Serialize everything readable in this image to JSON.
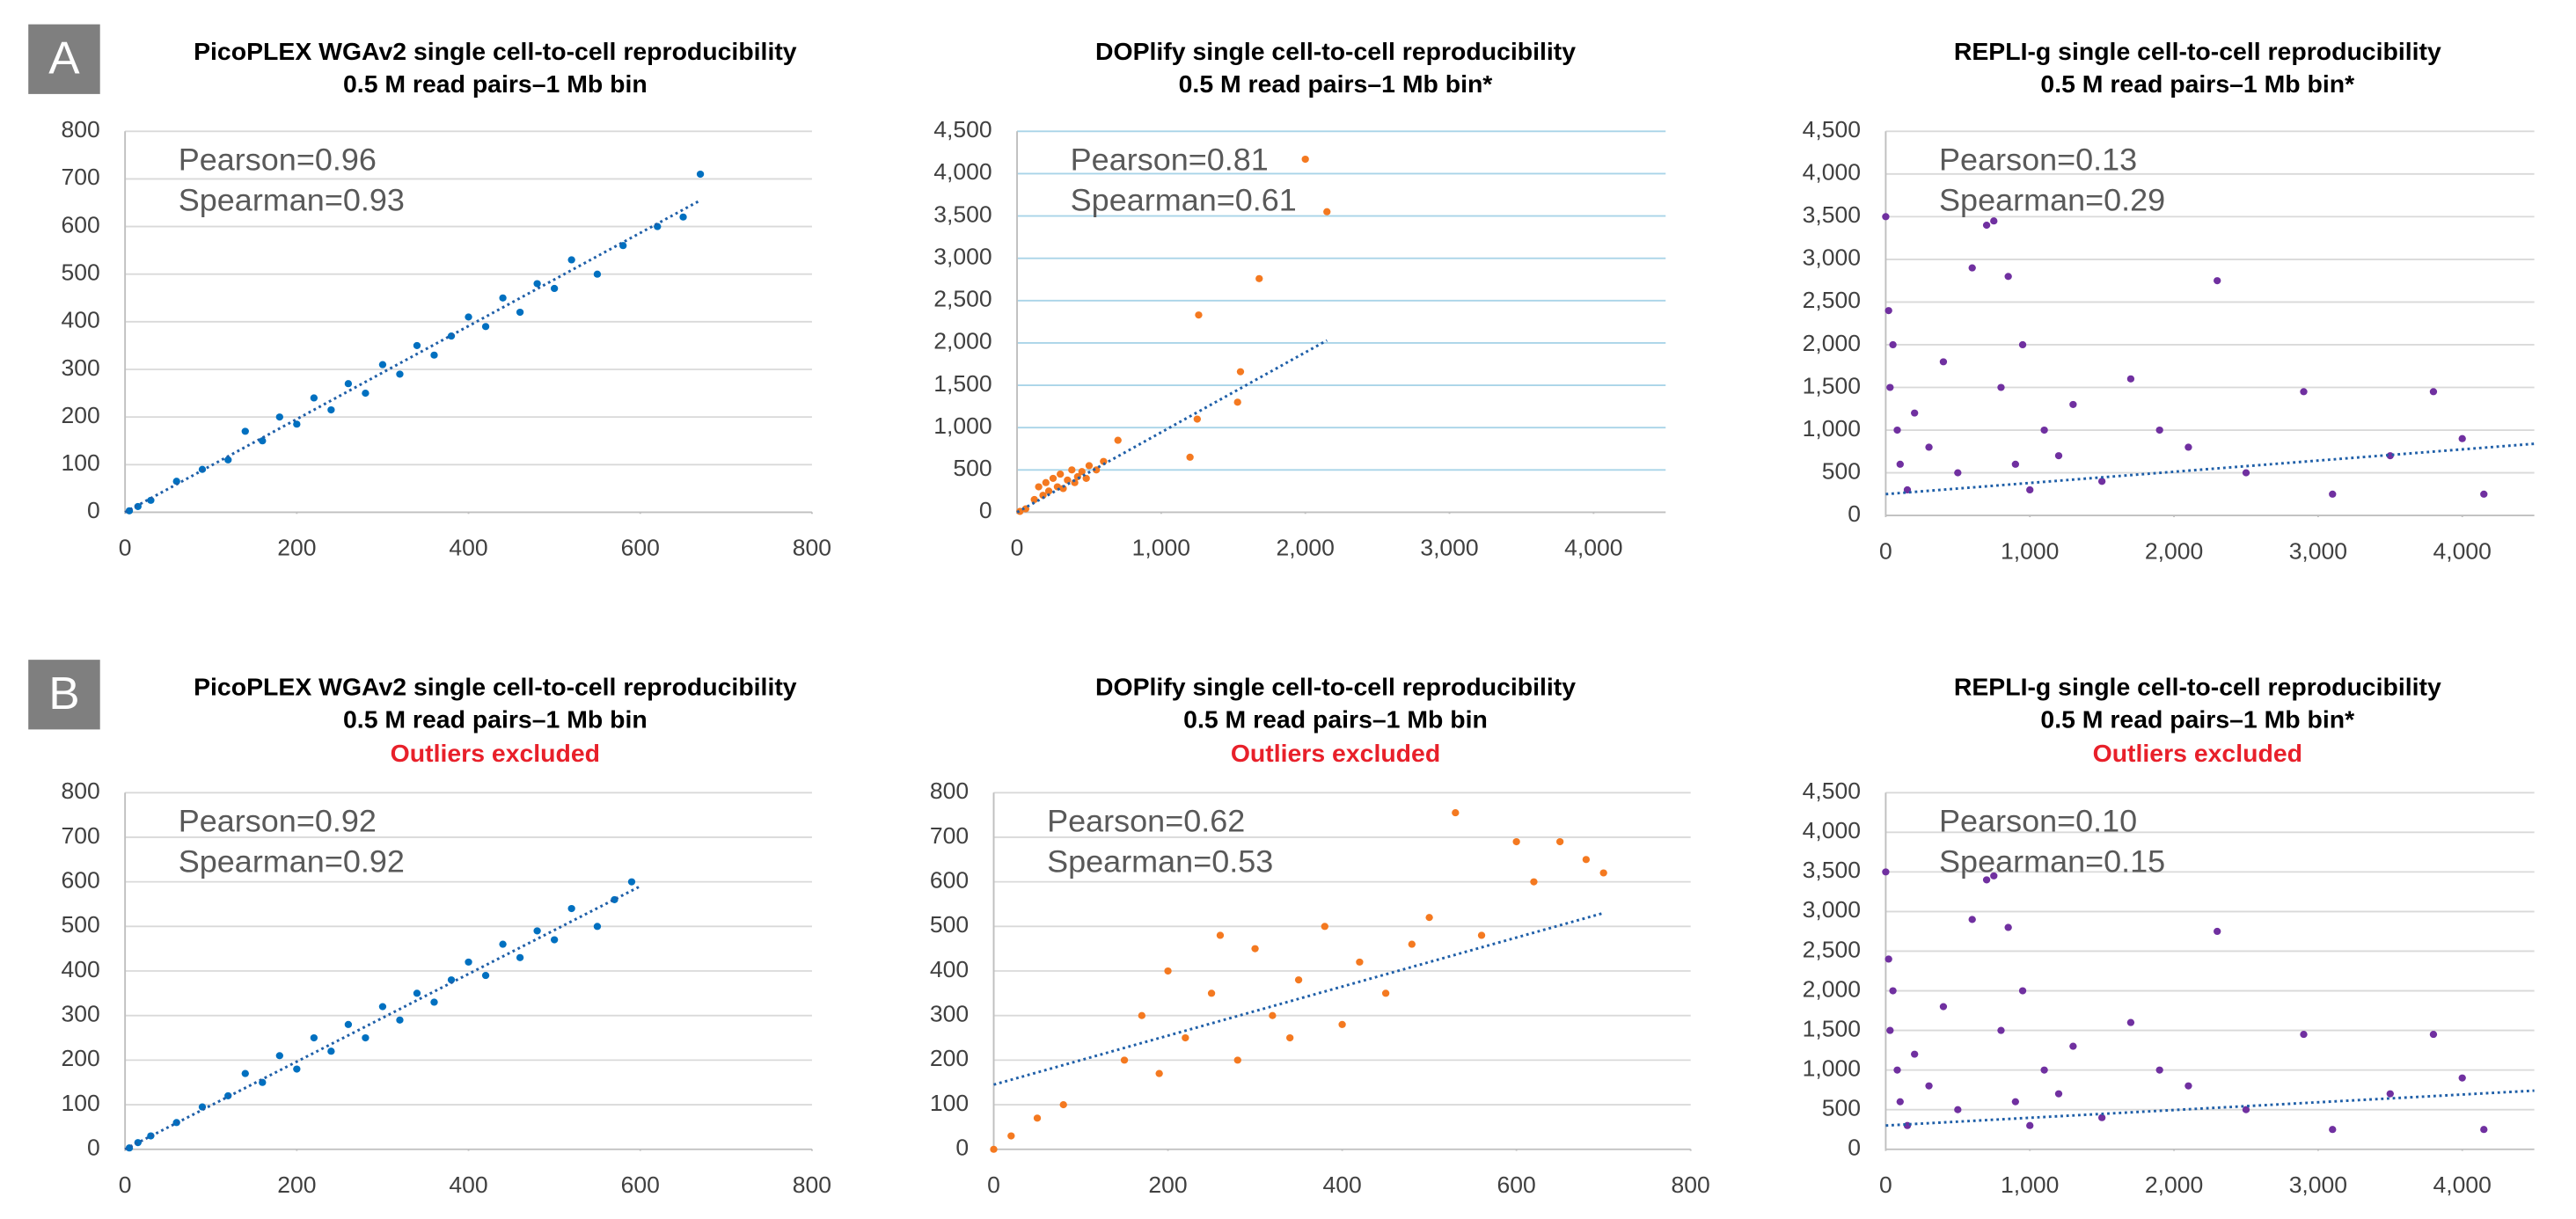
{
  "panels": [
    "A",
    "B"
  ],
  "chart_data": [
    {
      "type": "scatter",
      "title": "PicoPLEX WGAv2 single cell-to-cell reproducibility",
      "subtitle": "0.5 M read pairs–1 Mb bin",
      "annotations": [
        "Pearson=0.96",
        "Spearman=0.93"
      ],
      "color": "#0070c0",
      "grid_color": "#d9d9d9",
      "x": [
        5,
        15,
        30,
        60,
        90,
        120,
        140,
        160,
        180,
        200,
        220,
        240,
        260,
        280,
        300,
        320,
        340,
        360,
        380,
        400,
        420,
        440,
        460,
        480,
        500,
        520,
        550,
        580,
        620,
        650,
        670
      ],
      "y": [
        3,
        12,
        25,
        65,
        90,
        110,
        170,
        150,
        200,
        185,
        240,
        215,
        270,
        250,
        310,
        290,
        350,
        330,
        370,
        410,
        390,
        450,
        420,
        480,
        470,
        530,
        500,
        560,
        600,
        620,
        710
      ],
      "trendline": {
        "color": "#1f5fa8",
        "x": [
          0,
          670
        ],
        "y": [
          0,
          655
        ]
      },
      "xlim": [
        0,
        800
      ],
      "ylim": [
        0,
        800
      ],
      "xticks": [
        0,
        200,
        400,
        600,
        800
      ],
      "yticks": [
        0,
        100,
        200,
        300,
        400,
        500,
        600,
        700,
        800
      ],
      "grid": true
    },
    {
      "type": "scatter",
      "title": "DOPlify single cell-to-cell reproducibility",
      "subtitle": "0.5 M read pairs–1 Mb bin*",
      "annotations": [
        "Pearson=0.81",
        "Spearman=0.61"
      ],
      "color": "#f47920",
      "grid_color": "#a9d4e8",
      "x": [
        20,
        60,
        120,
        150,
        180,
        200,
        220,
        250,
        280,
        300,
        320,
        350,
        380,
        400,
        420,
        450,
        480,
        500,
        550,
        600,
        700,
        1200,
        1250,
        1260,
        1530,
        1550,
        1680,
        2000,
        2150
      ],
      "y": [
        10,
        40,
        150,
        300,
        200,
        350,
        250,
        400,
        300,
        450,
        280,
        380,
        500,
        350,
        420,
        480,
        400,
        550,
        500,
        600,
        850,
        650,
        1100,
        2330,
        1300,
        1660,
        2760,
        4170,
        3550
      ],
      "trendline": {
        "color": "#1f5fa8",
        "x": [
          0,
          2150
        ],
        "y": [
          0,
          2030
        ]
      },
      "xlim": [
        0,
        4500
      ],
      "ylim": [
        0,
        4500
      ],
      "xticks": [
        0,
        {
          "value": 1000,
          "label": "1,000"
        },
        {
          "value": 2000,
          "label": "2,000"
        },
        {
          "value": 3000,
          "label": "3,000"
        },
        {
          "value": 4000,
          "label": "4,000"
        }
      ],
      "yticks": [
        0,
        500,
        {
          "value": 1000,
          "label": "1,000"
        },
        {
          "value": 1500,
          "label": "1,500"
        },
        {
          "value": 2000,
          "label": "2,000"
        },
        {
          "value": 2500,
          "label": "2,500"
        },
        {
          "value": 3000,
          "label": "3,000"
        },
        {
          "value": 3500,
          "label": "3,500"
        },
        {
          "value": 4000,
          "label": "4,000"
        },
        {
          "value": 4500,
          "label": "4,500"
        }
      ],
      "grid": true
    },
    {
      "type": "scatter",
      "title": "REPLI-g single cell-to-cell reproducibility",
      "subtitle": "0.5 M read pairs–1 Mb bin*",
      "annotations": [
        "Pearson=0.13",
        "Spearman=0.29"
      ],
      "color": "#7030a0",
      "grid_color": "#d9d9d9",
      "x": [
        0,
        20,
        50,
        30,
        80,
        100,
        150,
        200,
        300,
        400,
        500,
        600,
        700,
        750,
        800,
        850,
        900,
        950,
        1000,
        1100,
        1200,
        1300,
        1500,
        1700,
        1900,
        2100,
        2300,
        2500,
        2900,
        3100,
        3500,
        3800,
        4000,
        4150
      ],
      "y": [
        3500,
        2400,
        2000,
        1500,
        1000,
        600,
        300,
        1200,
        800,
        1800,
        500,
        2900,
        3400,
        3450,
        1500,
        2800,
        600,
        2000,
        300,
        1000,
        700,
        1300,
        400,
        1600,
        1000,
        800,
        2750,
        500,
        1450,
        250,
        700,
        1450,
        900,
        250
      ],
      "trendline": {
        "color": "#1f5fa8",
        "x": [
          0,
          4500
        ],
        "y": [
          250,
          840
        ]
      },
      "xlim": [
        0,
        4500
      ],
      "ylim": [
        0,
        4500
      ],
      "xticks": [
        0,
        {
          "value": 1000,
          "label": "1,000"
        },
        {
          "value": 2000,
          "label": "2,000"
        },
        {
          "value": 3000,
          "label": "3,000"
        },
        {
          "value": 4000,
          "label": "4,000"
        }
      ],
      "yticks": [
        0,
        500,
        {
          "value": 1000,
          "label": "1,000"
        },
        {
          "value": 1500,
          "label": "1,500"
        },
        {
          "value": 2000,
          "label": "2,000"
        },
        {
          "value": 2500,
          "label": "2,500"
        },
        {
          "value": 3000,
          "label": "3,000"
        },
        {
          "value": 3500,
          "label": "3,500"
        },
        {
          "value": 4000,
          "label": "4,000"
        },
        {
          "value": 4500,
          "label": "4,500"
        }
      ],
      "grid": true
    },
    {
      "type": "scatter",
      "title": "PicoPLEX WGAv2 single cell-to-cell reproducibility",
      "subtitle": "0.5 M read pairs–1 Mb bin",
      "note": "Outliers excluded",
      "annotations": [
        "Pearson=0.92",
        "Spearman=0.92"
      ],
      "color": "#0070c0",
      "grid_color": "#d9d9d9",
      "x": [
        5,
        15,
        30,
        60,
        90,
        120,
        140,
        160,
        180,
        200,
        220,
        240,
        260,
        280,
        300,
        320,
        340,
        360,
        380,
        400,
        420,
        440,
        460,
        480,
        500,
        520,
        550,
        570,
        590
      ],
      "y": [
        3,
        15,
        30,
        60,
        95,
        120,
        170,
        150,
        210,
        180,
        250,
        220,
        280,
        250,
        320,
        290,
        350,
        330,
        380,
        420,
        390,
        460,
        430,
        490,
        470,
        540,
        500,
        560,
        600
      ],
      "trendline": {
        "color": "#1f5fa8",
        "x": [
          0,
          600
        ],
        "y": [
          0,
          590
        ]
      },
      "xlim": [
        0,
        800
      ],
      "ylim": [
        0,
        800
      ],
      "xticks": [
        0,
        200,
        400,
        600,
        800
      ],
      "yticks": [
        0,
        100,
        200,
        300,
        400,
        500,
        600,
        700,
        800
      ],
      "grid": true
    },
    {
      "type": "scatter",
      "title": "DOPlify single cell-to-cell reproducibility",
      "subtitle": "0.5 M read pairs–1 Mb bin",
      "note": "Outliers excluded",
      "annotations": [
        "Pearson=0.62",
        "Spearman=0.53"
      ],
      "color": "#f47920",
      "grid_color": "#d9d9d9",
      "x": [
        0,
        20,
        50,
        80,
        150,
        170,
        200,
        220,
        250,
        280,
        300,
        320,
        350,
        380,
        400,
        420,
        450,
        480,
        500,
        530,
        560,
        600,
        620,
        650,
        680,
        700,
        190,
        260,
        340
      ],
      "y": [
        0,
        30,
        70,
        100,
        200,
        300,
        400,
        250,
        350,
        200,
        450,
        300,
        380,
        500,
        280,
        420,
        350,
        460,
        520,
        755,
        480,
        690,
        600,
        690,
        650,
        620,
        170,
        480,
        250
      ],
      "trendline": {
        "color": "#1f5fa8",
        "x": [
          0,
          700
        ],
        "y": [
          145,
          530
        ]
      },
      "xlim": [
        0,
        800
      ],
      "ylim": [
        0,
        800
      ],
      "xticks": [
        0,
        200,
        400,
        600,
        800
      ],
      "yticks": [
        0,
        100,
        200,
        300,
        400,
        500,
        600,
        700,
        800
      ],
      "grid": true
    },
    {
      "type": "scatter",
      "title": "REPLI-g single cell-to-cell reproducibility",
      "subtitle": "0.5 M read pairs–1 Mb bin*",
      "note": "Outliers excluded",
      "annotations": [
        "Pearson=0.10",
        "Spearman=0.15"
      ],
      "color": "#7030a0",
      "grid_color": "#d9d9d9",
      "x": [
        0,
        20,
        50,
        30,
        80,
        100,
        150,
        200,
        300,
        400,
        500,
        600,
        700,
        750,
        800,
        850,
        900,
        950,
        1000,
        1100,
        1200,
        1300,
        1500,
        1700,
        1900,
        2100,
        2300,
        2500,
        2900,
        3100,
        3500,
        3800,
        4000,
        4150
      ],
      "y": [
        3500,
        2400,
        2000,
        1500,
        1000,
        600,
        300,
        1200,
        800,
        1800,
        500,
        2900,
        3400,
        3450,
        1500,
        2800,
        600,
        2000,
        300,
        1000,
        700,
        1300,
        400,
        1600,
        1000,
        800,
        2750,
        500,
        1450,
        250,
        700,
        1450,
        900,
        250
      ],
      "trendline": {
        "color": "#1f5fa8",
        "x": [
          0,
          4500
        ],
        "y": [
          300,
          740
        ]
      },
      "xlim": [
        0,
        4500
      ],
      "ylim": [
        0,
        4500
      ],
      "xticks": [
        0,
        {
          "value": 1000,
          "label": "1,000"
        },
        {
          "value": 2000,
          "label": "2,000"
        },
        {
          "value": 3000,
          "label": "3,000"
        },
        {
          "value": 4000,
          "label": "4,000"
        }
      ],
      "yticks": [
        0,
        500,
        {
          "value": 1000,
          "label": "1,000"
        },
        {
          "value": 1500,
          "label": "1,500"
        },
        {
          "value": 2000,
          "label": "2,000"
        },
        {
          "value": 2500,
          "label": "2,500"
        },
        {
          "value": 3000,
          "label": "3,000"
        },
        {
          "value": 3500,
          "label": "3,500"
        },
        {
          "value": 4000,
          "label": "4,000"
        },
        {
          "value": 4500,
          "label": "4,500"
        }
      ],
      "grid": true
    }
  ]
}
